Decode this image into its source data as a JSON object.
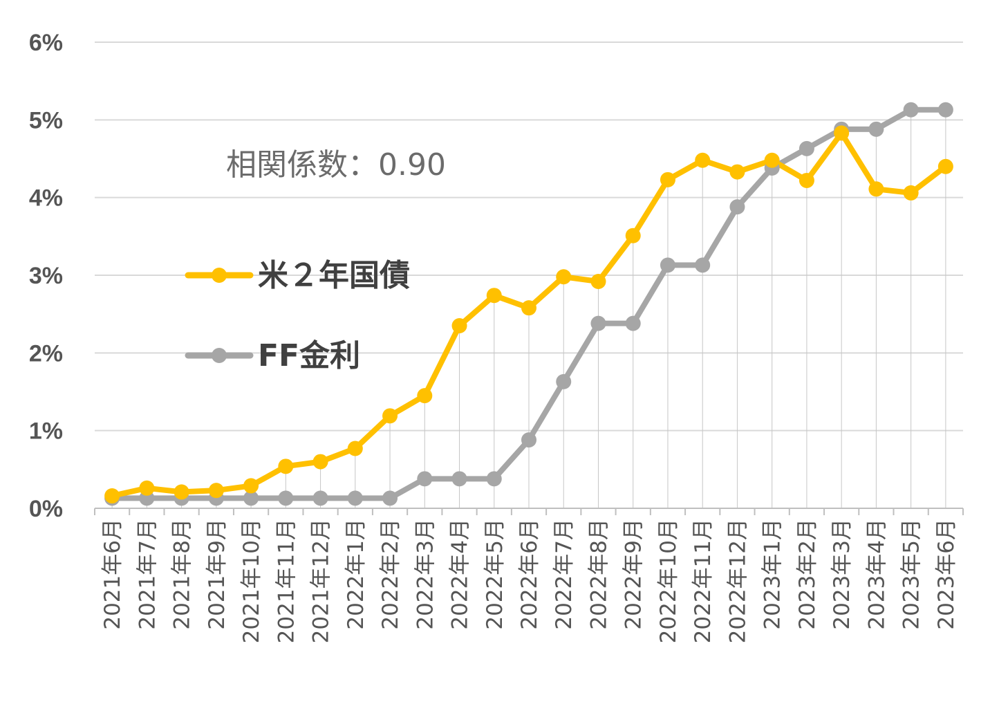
{
  "chart_data": {
    "type": "line",
    "title": "",
    "xlabel": "",
    "ylabel": "",
    "ylim": [
      0,
      6
    ],
    "yticks": [
      "0%",
      "1%",
      "2%",
      "3%",
      "4%",
      "5%",
      "6%"
    ],
    "grid": true,
    "legend": "left-middle",
    "annotation": "相関係数：0.90",
    "categories": [
      "2021年6月",
      "2021年7月",
      "2021年8月",
      "2021年9月",
      "2021年10月",
      "2021年11月",
      "2021年12月",
      "2022年1月",
      "2022年2月",
      "2022年3月",
      "2022年4月",
      "2022年5月",
      "2022年6月",
      "2022年7月",
      "2022年8月",
      "2022年9月",
      "2022年10月",
      "2022年11月",
      "2022年12月",
      "2023年1月",
      "2023年2月",
      "2023年3月",
      "2023年4月",
      "2023年5月",
      "2023年6月"
    ],
    "series": [
      {
        "name": "米２年国債",
        "color": "#FFC000",
        "values": [
          0.16,
          0.26,
          0.21,
          0.23,
          0.29,
          0.54,
          0.6,
          0.77,
          1.19,
          1.45,
          2.35,
          2.74,
          2.58,
          2.98,
          2.92,
          3.51,
          4.23,
          4.48,
          4.33,
          4.48,
          4.22,
          4.83,
          4.11,
          4.06,
          4.4
        ]
      },
      {
        "name": "FF金利",
        "color": "#A6A6A6",
        "values": [
          0.13,
          0.13,
          0.13,
          0.13,
          0.13,
          0.13,
          0.13,
          0.13,
          0.13,
          0.38,
          0.38,
          0.38,
          0.88,
          1.63,
          2.38,
          2.38,
          3.13,
          3.13,
          3.88,
          4.38,
          4.63,
          4.88,
          4.88,
          5.13,
          5.13
        ]
      }
    ]
  }
}
